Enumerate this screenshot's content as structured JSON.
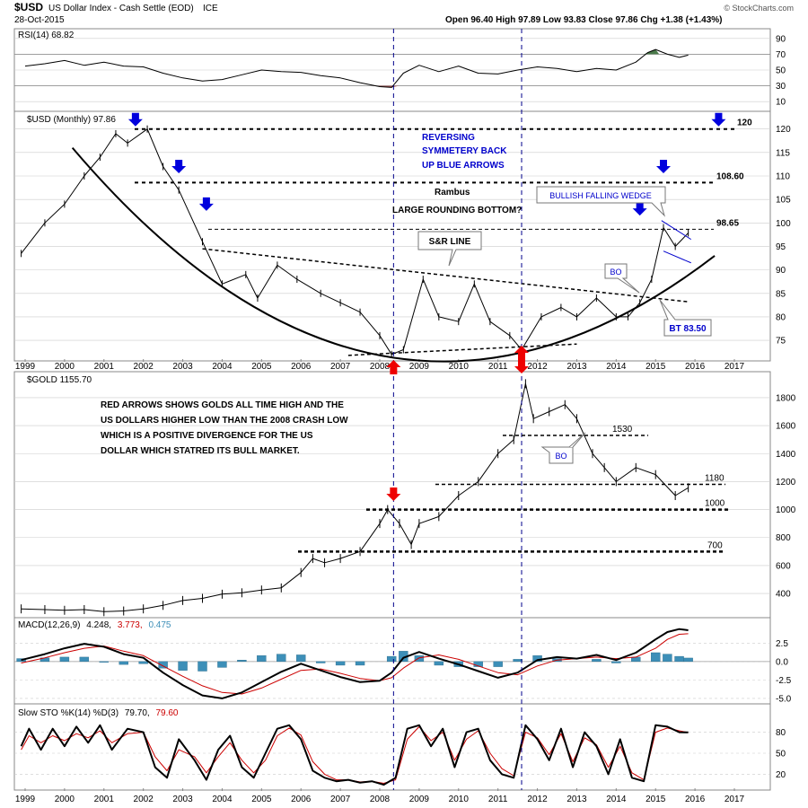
{
  "header": {
    "symbol": "$USD",
    "name": "US Dollar Index - Cash Settle (EOD)",
    "exchange": "ICE",
    "date": "28-Oct-2015",
    "quote": "Open 96.40   High 97.89   Low 93.83   Close 97.86   Chg +1.38 (+1.43%)",
    "watermark": "© StockCharts.com"
  },
  "colors": {
    "price": "#000000",
    "signal": "#cc0000",
    "histogram": "#3d8fb8",
    "annotation_blue": "#0000cc",
    "arrow_blue": "#0000dd",
    "arrow_red": "#ee0000",
    "rsi_overbought_fill": "#4a7a4a",
    "rsi_oversold_fill": "#a35050",
    "vertical_marker": "#00008b"
  },
  "chart_data": [
    {
      "id": "rsi",
      "type": "line",
      "title": "RSI(14) 68.82",
      "yticks": [
        10,
        30,
        50,
        70,
        90
      ],
      "ylim": [
        0,
        100
      ],
      "x": [
        1999.0,
        1999.5,
        2000.0,
        2000.5,
        2001.0,
        2001.5,
        2002.0,
        2002.5,
        2003.0,
        2003.5,
        2004.0,
        2004.5,
        2005.0,
        2005.5,
        2006.0,
        2006.5,
        2007.0,
        2007.5,
        2008.0,
        2008.3,
        2008.6,
        2009.0,
        2009.5,
        2010.0,
        2010.5,
        2011.0,
        2011.5,
        2012.0,
        2012.5,
        2013.0,
        2013.5,
        2014.0,
        2014.5,
        2014.8,
        2015.0,
        2015.3,
        2015.6,
        2015.83
      ],
      "values": [
        55,
        58,
        62,
        56,
        60,
        55,
        54,
        46,
        40,
        36,
        38,
        44,
        50,
        48,
        47,
        43,
        40,
        34,
        29,
        28,
        46,
        56,
        48,
        55,
        46,
        45,
        50,
        54,
        52,
        48,
        52,
        50,
        60,
        72,
        76,
        70,
        66,
        68.82
      ]
    },
    {
      "id": "usd",
      "type": "line",
      "title": "$USD (Monthly) 97.86",
      "yticks": [
        75,
        80,
        85,
        90,
        95,
        100,
        105,
        110,
        115,
        120
      ],
      "ylim": [
        71,
        123
      ],
      "x": [
        1998.9,
        1999.5,
        2000.0,
        2000.5,
        2000.9,
        2001.3,
        2001.6,
        2002.1,
        2002.5,
        2002.9,
        2003.5,
        2004.0,
        2004.6,
        2004.9,
        2005.4,
        2005.9,
        2006.5,
        2007.0,
        2007.5,
        2008.0,
        2008.3,
        2008.6,
        2009.1,
        2009.5,
        2010.0,
        2010.4,
        2010.8,
        2011.3,
        2011.6,
        2012.1,
        2012.6,
        2013.0,
        2013.5,
        2014.0,
        2014.3,
        2014.6,
        2014.9,
        2015.2,
        2015.5,
        2015.83
      ],
      "values": [
        93.5,
        100,
        104,
        110,
        114,
        119,
        117,
        120,
        112,
        107,
        96,
        87,
        89,
        84,
        91,
        88,
        85,
        83,
        81,
        76,
        72,
        73,
        88,
        80,
        79,
        87,
        79,
        76,
        73,
        80,
        82,
        80,
        84,
        80,
        80,
        83,
        88,
        99,
        95,
        97.86
      ],
      "levels": [
        {
          "value": 120,
          "label": "120"
        },
        {
          "value": 108.6,
          "label": "108.60"
        },
        {
          "value": 98.65,
          "label": "98.65"
        }
      ],
      "sr_line": {
        "x": [
          2003.5,
          2015.83
        ],
        "y": [
          94.5,
          83.2
        ]
      },
      "rounding_bottom": {
        "x": [
          2000.2,
          2008.2,
          2016.5
        ],
        "y": [
          116.0,
          71.5,
          93.0
        ]
      },
      "wedge": {
        "upper": [
          [
            2015.15,
            100.5
          ],
          [
            2015.9,
            96.5
          ]
        ],
        "lower": [
          [
            2015.2,
            94.0
          ],
          [
            2015.9,
            91.5
          ]
        ]
      },
      "xticks": [
        "1999",
        "2000",
        "2001",
        "2002",
        "2003",
        "2004",
        "2005",
        "2006",
        "2007",
        "2008",
        "2009",
        "2010",
        "2011",
        "2012",
        "2013",
        "2014",
        "2015",
        "2016",
        "2017"
      ],
      "annotations": {
        "reversing": "REVERSING\nSYMMETERY  BACK\nUP BLUE ARROWS",
        "rambus": "Rambus",
        "large_bottom": "LARGE ROUNDING BOTTOM?",
        "sr_line": "S&R LINE",
        "wedge": "BULLISH FALLING WEDGE",
        "bo": "BO",
        "bt": "BT 83.50"
      }
    },
    {
      "id": "gold",
      "type": "line",
      "title": "$GOLD 1155.70",
      "yticks": [
        400,
        600,
        800,
        1000,
        1200,
        1400,
        1600,
        1800
      ],
      "ylim": [
        240,
        1960
      ],
      "x": [
        1998.9,
        1999.5,
        2000.0,
        2000.5,
        2001.0,
        2001.5,
        2002.0,
        2002.5,
        2003.0,
        2003.5,
        2004.0,
        2004.5,
        2005.0,
        2005.5,
        2006.0,
        2006.3,
        2006.6,
        2007.0,
        2007.5,
        2008.0,
        2008.2,
        2008.5,
        2008.8,
        2009.0,
        2009.5,
        2010.0,
        2010.5,
        2011.0,
        2011.4,
        2011.7,
        2011.9,
        2012.3,
        2012.7,
        2013.0,
        2013.4,
        2013.7,
        2014.0,
        2014.5,
        2015.0,
        2015.5,
        2015.83
      ],
      "values": [
        290,
        285,
        280,
        285,
        270,
        275,
        290,
        315,
        350,
        365,
        395,
        405,
        425,
        440,
        550,
        650,
        620,
        650,
        700,
        900,
        1000,
        900,
        750,
        900,
        950,
        1100,
        1200,
        1400,
        1500,
        1900,
        1650,
        1700,
        1750,
        1650,
        1400,
        1300,
        1200,
        1300,
        1250,
        1100,
        1155.7
      ],
      "levels": [
        {
          "value": 1530,
          "label": "1530"
        },
        {
          "value": 1180,
          "label": "1180"
        },
        {
          "value": 1000,
          "label": "1000"
        },
        {
          "value": 700,
          "label": "700"
        }
      ],
      "annotations": {
        "note": "RED ARROWS SHOWS GOLDS ALL TIME HIGH AND THE\nUS DOLLARS HIGHER LOW THAN THE 2008 CRASH LOW\nWHICH IS A POSITIVE DIVERGENCE FOR THE US\nDOLLAR WHICH STATRED ITS BULL MARKET.",
        "bo": "BO"
      }
    },
    {
      "id": "macd",
      "type": "line",
      "title_prefix": "MACD(12,26,9)",
      "title_macd": "4.248,",
      "title_signal": "3.773,",
      "title_hist": "0.475",
      "yticks": [
        -5.0,
        -2.5,
        0.0,
        2.5
      ],
      "yticklabels": [
        "-5.0",
        "-2.5",
        "0.0",
        "2.5"
      ],
      "ylim": [
        -5.5,
        4.0
      ],
      "x": [
        1998.9,
        1999.5,
        2000.0,
        2000.5,
        2001.0,
        2001.5,
        2002.0,
        2002.5,
        2003.0,
        2003.5,
        2004.0,
        2004.5,
        2005.0,
        2005.5,
        2006.0,
        2006.5,
        2007.0,
        2007.5,
        2008.0,
        2008.3,
        2008.6,
        2009.0,
        2009.5,
        2010.0,
        2010.5,
        2011.0,
        2011.5,
        2012.0,
        2012.5,
        2013.0,
        2013.5,
        2014.0,
        2014.5,
        2015.0,
        2015.3,
        2015.6,
        2015.83
      ],
      "macd": [
        0.2,
        1.0,
        1.8,
        2.4,
        2.0,
        1.0,
        0.5,
        -1.5,
        -3.2,
        -4.6,
        -5.0,
        -4.2,
        -2.8,
        -1.4,
        -0.3,
        -1.2,
        -2.1,
        -2.8,
        -2.6,
        -1.5,
        0.5,
        1.3,
        0.4,
        -0.4,
        -1.3,
        -2.2,
        -1.5,
        0.2,
        0.6,
        0.4,
        0.9,
        0.2,
        1.2,
        3.0,
        4.0,
        4.4,
        4.248
      ],
      "signal": [
        -0.2,
        0.5,
        1.2,
        1.8,
        2.1,
        1.4,
        0.8,
        -0.6,
        -2.0,
        -3.3,
        -4.2,
        -4.4,
        -3.6,
        -2.4,
        -1.2,
        -1.0,
        -1.6,
        -2.3,
        -2.6,
        -2.2,
        -0.9,
        0.5,
        0.9,
        0.3,
        -0.6,
        -1.5,
        -1.8,
        -0.6,
        0.2,
        0.4,
        0.6,
        0.4,
        0.6,
        1.8,
        3.0,
        3.7,
        3.773
      ]
    },
    {
      "id": "stoch",
      "type": "line",
      "title_prefix": "Slow STO %K(14) %D(3)",
      "title_k": "79.70,",
      "title_d": "79.60",
      "yticks": [
        20,
        50,
        80
      ],
      "ylim": [
        0,
        100
      ],
      "x": [
        1998.9,
        1999.1,
        1999.4,
        1999.7,
        2000.0,
        2000.3,
        2000.6,
        2000.9,
        2001.2,
        2001.6,
        2002.0,
        2002.3,
        2002.6,
        2002.9,
        2003.3,
        2003.6,
        2003.9,
        2004.2,
        2004.5,
        2004.8,
        2005.1,
        2005.4,
        2005.7,
        2006.0,
        2006.3,
        2006.6,
        2006.9,
        2007.2,
        2007.5,
        2007.8,
        2008.1,
        2008.4,
        2008.7,
        2009.0,
        2009.3,
        2009.6,
        2009.9,
        2010.2,
        2010.5,
        2010.8,
        2011.1,
        2011.4,
        2011.7,
        2012.0,
        2012.3,
        2012.6,
        2012.9,
        2013.2,
        2013.5,
        2013.8,
        2014.1,
        2014.4,
        2014.7,
        2015.0,
        2015.3,
        2015.6,
        2015.83
      ],
      "k": [
        60,
        85,
        55,
        85,
        60,
        88,
        65,
        90,
        55,
        85,
        80,
        30,
        15,
        70,
        40,
        12,
        55,
        75,
        30,
        15,
        50,
        85,
        90,
        70,
        25,
        15,
        10,
        12,
        8,
        10,
        5,
        15,
        85,
        90,
        60,
        85,
        30,
        80,
        85,
        40,
        20,
        15,
        90,
        70,
        40,
        85,
        30,
        80,
        60,
        20,
        70,
        15,
        10,
        90,
        88,
        80,
        79.7
      ],
      "d": [
        55,
        75,
        65,
        75,
        68,
        78,
        72,
        82,
        65,
        78,
        80,
        45,
        25,
        55,
        45,
        22,
        45,
        65,
        40,
        22,
        40,
        75,
        86,
        76,
        38,
        20,
        12,
        12,
        9,
        10,
        7,
        12,
        70,
        88,
        68,
        80,
        40,
        70,
        82,
        50,
        28,
        18,
        80,
        72,
        48,
        78,
        38,
        72,
        62,
        30,
        60,
        22,
        12,
        80,
        86,
        82,
        79.6
      ]
    }
  ]
}
